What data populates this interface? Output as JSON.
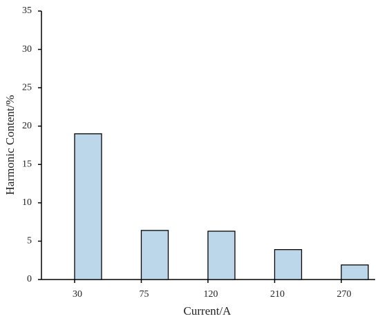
{
  "chart_data": {
    "type": "bar",
    "x_label": "Current/A",
    "y_label": "Harmonic Content/%",
    "categories": [
      "30",
      "75",
      "120",
      "210",
      "270"
    ],
    "values": [
      19.0,
      6.4,
      6.3,
      3.9,
      1.9
    ],
    "color": "#bcd7e9",
    "ylim": [
      0,
      35
    ],
    "yticks": [
      0,
      5,
      10,
      15,
      20,
      25,
      30,
      35
    ]
  }
}
